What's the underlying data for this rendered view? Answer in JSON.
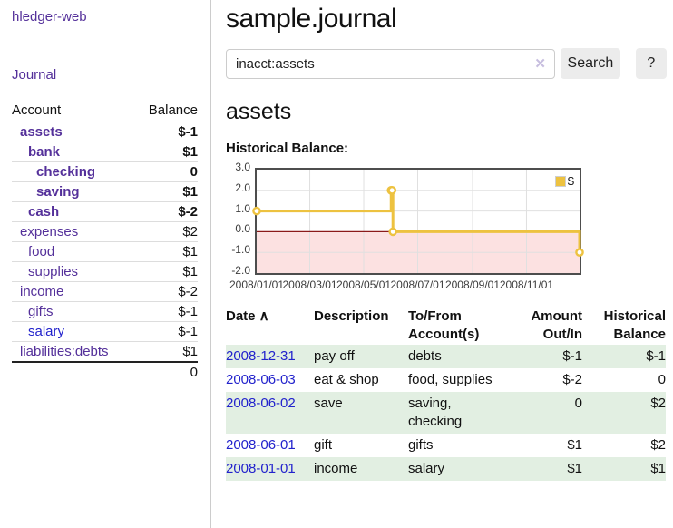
{
  "app": {
    "title": "hledger-web"
  },
  "sidebar": {
    "journal_link": "Journal",
    "accounts": {
      "headers": {
        "account": "Account",
        "balance": "Balance"
      },
      "rows": [
        {
          "name": "assets",
          "depth": 0,
          "bold": true,
          "name_color": "purple",
          "balance": "$-1",
          "balance_color": "darkred"
        },
        {
          "name": "bank",
          "depth": 1,
          "bold": true,
          "name_color": "purple",
          "balance": "$1",
          "balance_color": "black"
        },
        {
          "name": "checking",
          "depth": 2,
          "bold": true,
          "name_color": "purple",
          "balance": "0",
          "balance_color": "black"
        },
        {
          "name": "saving",
          "depth": 2,
          "bold": true,
          "name_color": "purple",
          "balance": "$1",
          "balance_color": "black"
        },
        {
          "name": "cash",
          "depth": 1,
          "bold": true,
          "name_color": "purple",
          "balance": "$-2",
          "balance_color": "darkred"
        },
        {
          "name": "expenses",
          "depth": 0,
          "bold": false,
          "name_color": "purple",
          "balance": "$2",
          "balance_color": "black"
        },
        {
          "name": "food",
          "depth": 1,
          "bold": false,
          "name_color": "purple",
          "balance": "$1",
          "balance_color": "black"
        },
        {
          "name": "supplies",
          "depth": 1,
          "bold": false,
          "name_color": "purple",
          "balance": "$1",
          "balance_color": "black"
        },
        {
          "name": "income",
          "depth": 0,
          "bold": false,
          "name_color": "purple",
          "balance": "$-2",
          "balance_color": "lightred"
        },
        {
          "name": "gifts",
          "depth": 1,
          "bold": false,
          "name_color": "purple",
          "balance": "$-1",
          "balance_color": "lightred"
        },
        {
          "name": "salary",
          "depth": 1,
          "bold": false,
          "name_color": "blue",
          "balance": "$-1",
          "balance_color": "lightred"
        },
        {
          "name": "liabilities:debts",
          "depth": 0,
          "bold": false,
          "name_color": "purple",
          "balance": "$1",
          "balance_color": "black"
        }
      ],
      "total": "0"
    }
  },
  "main": {
    "title": "sample.journal",
    "search": {
      "value": "inacct:assets",
      "clear_icon": "✕",
      "button_label": "Search",
      "help_label": "?"
    },
    "account_heading": "assets",
    "chart_label": "Historical Balance:"
  },
  "chart_data": {
    "type": "line",
    "subtype": "step",
    "title": "Historical Balance",
    "x_range": [
      "2008-01-01",
      "2008-12-31"
    ],
    "ylim": [
      -2,
      3
    ],
    "grid": true,
    "legend": {
      "label": "$",
      "position": "top-right"
    },
    "colors": {
      "line": "#edc240",
      "marker_fill": "#ffffff",
      "negative_region": "#fce1e1",
      "zero_line": "#8b1a1a",
      "gridline": "#e0e0e0",
      "border": "#4d4d4d"
    },
    "series": [
      {
        "name": "$",
        "points": [
          {
            "date": "2008-01-01",
            "value": 1
          },
          {
            "date": "2008-06-01",
            "value": 2
          },
          {
            "date": "2008-06-02",
            "value": 2
          },
          {
            "date": "2008-06-03",
            "value": 0
          },
          {
            "date": "2008-12-31",
            "value": -1
          }
        ]
      }
    ],
    "y_ticks": [
      {
        "label": "3.0",
        "value": 3
      },
      {
        "label": "2.0",
        "value": 2
      },
      {
        "label": "1.0",
        "value": 1
      },
      {
        "label": "0.0",
        "value": 0
      },
      {
        "label": "-1.0",
        "value": -1
      },
      {
        "label": "-2.0",
        "value": -2
      }
    ],
    "x_ticks": [
      {
        "label": "2008/01/01",
        "date": "2008-01-01"
      },
      {
        "label": "2008/03/01",
        "date": "2008-03-01"
      },
      {
        "label": "2008/05/01",
        "date": "2008-05-01"
      },
      {
        "label": "2008/07/01",
        "date": "2008-07-01"
      },
      {
        "label": "2008/09/01",
        "date": "2008-09-01"
      },
      {
        "label": "2008/11/01",
        "date": "2008-11-01"
      }
    ]
  },
  "register": {
    "headers": [
      {
        "lines": [
          "Date"
        ],
        "align": "left",
        "sort_icon": "∧"
      },
      {
        "lines": [
          "Description"
        ],
        "align": "left"
      },
      {
        "lines": [
          "To/From",
          "Account(s)"
        ],
        "align": "left"
      },
      {
        "lines": [
          "Amount",
          "Out/In"
        ],
        "align": "right"
      },
      {
        "lines": [
          "Historical",
          "Balance"
        ],
        "align": "right"
      }
    ],
    "rows": [
      {
        "date": "2008-12-31",
        "description": "pay off",
        "accounts": "debts",
        "amount": "$-1",
        "balance": "$-1"
      },
      {
        "date": "2008-06-03",
        "description": "eat & shop",
        "accounts": "food, supplies",
        "amount": "$-2",
        "balance": "0"
      },
      {
        "date": "2008-06-02",
        "description": "save",
        "accounts": "saving, checking",
        "amount": "0",
        "balance": "$2"
      },
      {
        "date": "2008-06-01",
        "description": "gift",
        "accounts": "gifts",
        "amount": "$1",
        "balance": "$2"
      },
      {
        "date": "2008-01-01",
        "description": "income",
        "accounts": "salary",
        "amount": "$1",
        "balance": "$1"
      }
    ]
  }
}
